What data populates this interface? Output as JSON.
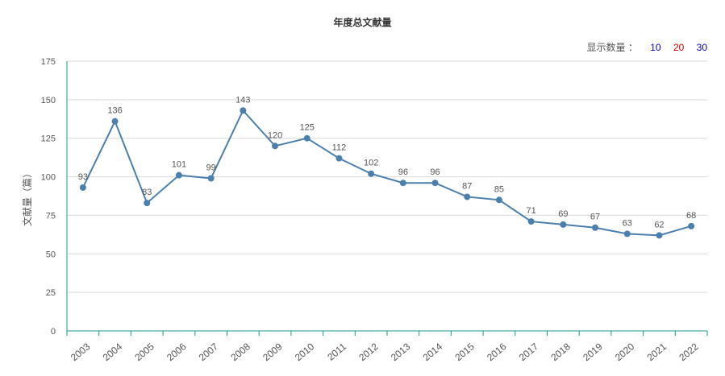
{
  "count_selector": {
    "label": "显示数量 ：",
    "options": [
      {
        "text": "10",
        "color": "#0000cc"
      },
      {
        "text": "20",
        "color": "#cc0000"
      },
      {
        "text": "30",
        "color": "#0000cc"
      }
    ]
  },
  "chart_data": {
    "type": "line",
    "title": "年度总文献量",
    "xlabel": "",
    "ylabel": "文献量（篇）",
    "categories": [
      "2003",
      "2004",
      "2005",
      "2006",
      "2007",
      "2008",
      "2009",
      "2010",
      "2011",
      "2012",
      "2013",
      "2014",
      "2015",
      "2016",
      "2017",
      "2018",
      "2019",
      "2020",
      "2021",
      "2022"
    ],
    "series": [
      {
        "values": [
          93,
          136,
          83,
          101,
          99,
          143,
          120,
          125,
          112,
          102,
          96,
          96,
          87,
          85,
          71,
          69,
          67,
          63,
          62,
          68
        ],
        "color": "#4a7fae"
      }
    ],
    "ylim": [
      0,
      175
    ],
    "yticks": [
      0,
      25,
      50,
      75,
      100,
      125,
      150,
      175
    ],
    "grid": true,
    "axis_color": "#1a9a8a"
  }
}
